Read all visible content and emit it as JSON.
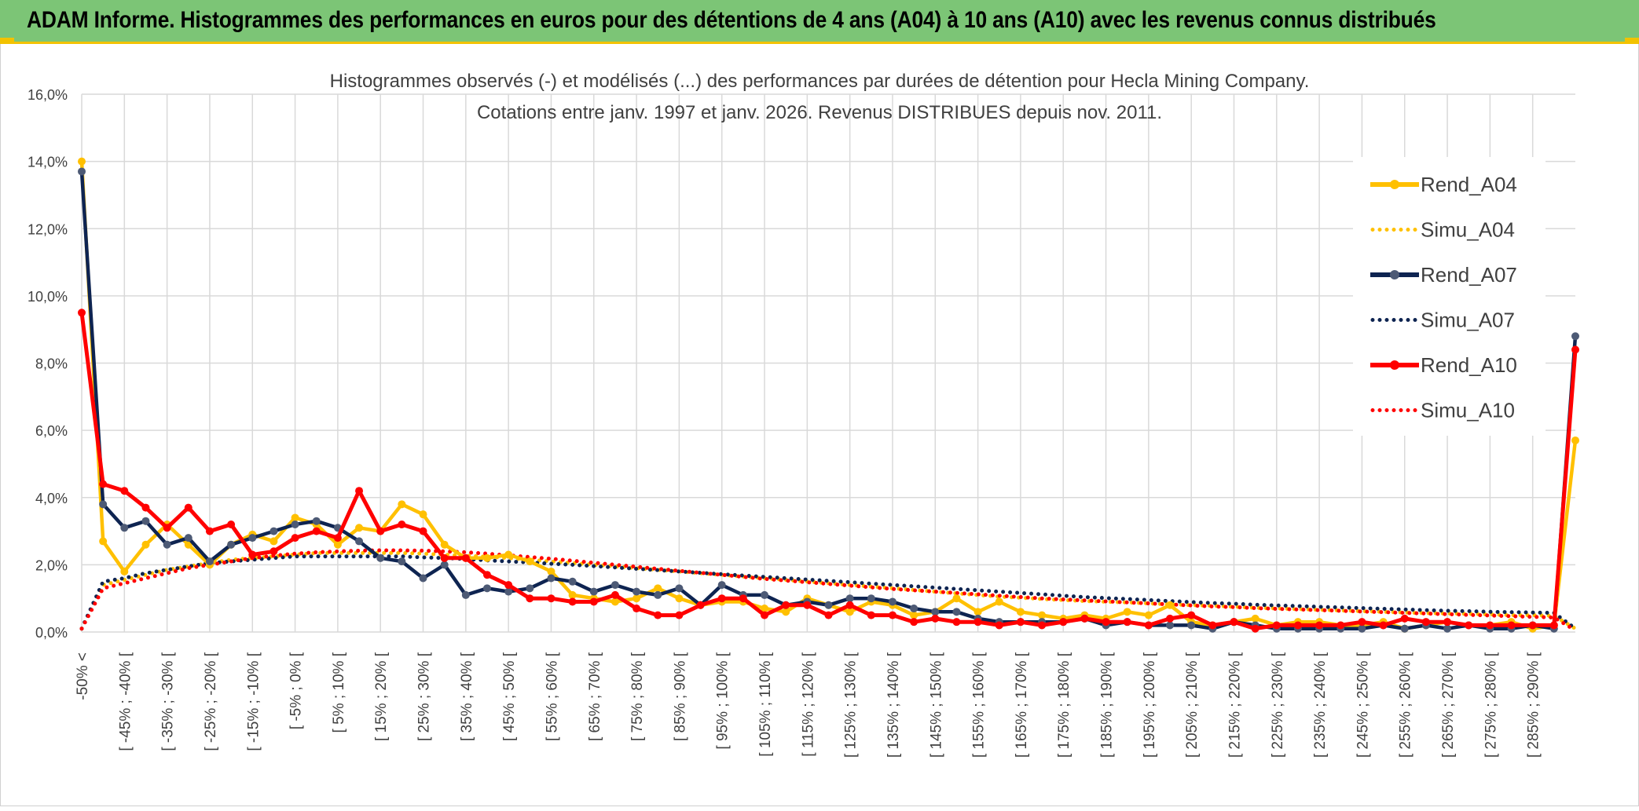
{
  "banner": {
    "title": "ADAM Informe. Histogrammes des performances en euros pour des détentions de 4 ans (A04) à 10 ans (A10) avec les revenus connus distribués"
  },
  "chart_data": {
    "type": "line",
    "title": "Histogrammes observés (-) et modélisés (...) des performances par durées de détention pour Hecla Mining Company.",
    "subtitle": "Cotations entre janv. 1997 et janv. 2026. Revenus DISTRIBUES depuis nov. 2011.",
    "xlabel": "",
    "ylabel": "",
    "ylim": [
      0,
      16
    ],
    "y_ticks": [
      "0,0%",
      "2,0%",
      "4,0%",
      "6,0%",
      "8,0%",
      "10,0%",
      "12,0%",
      "14,0%",
      "16,0%"
    ],
    "grid": true,
    "legend_position": "top-right",
    "x_labels": [
      "-50% <",
      "[ -45% ; -40% [",
      "[ -35% ; -30% [",
      "[ -25% ; -20% [",
      "[ -15% ; -10% [",
      "[ -5% ; 0% [",
      "[ 5% ; 10% [",
      "[ 15% ; 20% [",
      "[ 25% ; 30% [",
      "[ 35% ; 40% [",
      "[ 45% ; 50% [",
      "[ 55% ; 60% [",
      "[ 65% ; 70% [",
      "[ 75% ; 80% [",
      "[ 85% ; 90% [",
      "[ 95% ; 100% [",
      "[ 105% ; 110% [",
      "[ 115% ; 120% [",
      "[ 125% ; 130% [",
      "[ 135% ; 140% [",
      "[ 145% ; 150% [",
      "[ 155% ; 160% [",
      "[ 165% ; 170% [",
      "[ 175% ; 180% [",
      "[ 185% ; 190% [",
      "[ 195% ; 200% [",
      "[ 205% ; 210% [",
      "[ 215% ; 220% [",
      "[ 225% ; 230% [",
      "[ 235% ; 240% [",
      "[ 245% ; 250% [",
      "[ 255% ; 260% [",
      "[ 265% ; 270% [",
      "[ 275% ; 280% [",
      "[ 285% ; 290% ["
    ],
    "series": [
      {
        "name": "Rend_A04",
        "style": "solid",
        "color": "#ffc000",
        "values": [
          14.0,
          2.7,
          1.8,
          2.6,
          3.2,
          2.6,
          2.0,
          2.6,
          2.9,
          2.7,
          3.4,
          3.2,
          2.6,
          3.1,
          3.0,
          3.8,
          3.5,
          2.6,
          2.2,
          2.2,
          2.3,
          2.1,
          1.8,
          1.1,
          1.0,
          0.9,
          1.0,
          1.3,
          1.0,
          0.8,
          0.9,
          0.9,
          0.7,
          0.6,
          1.0,
          0.8,
          0.6,
          0.9,
          0.8,
          0.5,
          0.6,
          1.0,
          0.6,
          0.9,
          0.6,
          0.5,
          0.4,
          0.5,
          0.4,
          0.6,
          0.5,
          0.8,
          0.3,
          0.2,
          0.3,
          0.4,
          0.2,
          0.3,
          0.3,
          0.2,
          0.2,
          0.3,
          0.1,
          0.2,
          0.3,
          0.2,
          0.2,
          0.3,
          0.1,
          0.2,
          5.7
        ]
      },
      {
        "name": "Simu_A04",
        "style": "dotted",
        "color": "#ffc000",
        "values": [
          0.1,
          1.4,
          1.55,
          1.7,
          1.85,
          1.95,
          2.05,
          2.15,
          2.2,
          2.25,
          2.3,
          2.35,
          2.35,
          2.35,
          2.35,
          2.35,
          2.33,
          2.3,
          2.27,
          2.24,
          2.2,
          2.15,
          2.1,
          2.05,
          2.0,
          1.95,
          1.9,
          1.85,
          1.8,
          1.75,
          1.7,
          1.65,
          1.6,
          1.55,
          1.5,
          1.45,
          1.4,
          1.35,
          1.3,
          1.25,
          1.2,
          1.15,
          1.1,
          1.05,
          1.02,
          0.98,
          0.95,
          0.92,
          0.9,
          0.88,
          0.85,
          0.82,
          0.8,
          0.78,
          0.75,
          0.72,
          0.7,
          0.68,
          0.66,
          0.64,
          0.62,
          0.6,
          0.58,
          0.56,
          0.55,
          0.54,
          0.52,
          0.5,
          0.5,
          0.48,
          0.1
        ]
      },
      {
        "name": "Rend_A07",
        "style": "solid",
        "color": "#0e2451",
        "values": [
          13.7,
          3.8,
          3.1,
          3.3,
          2.6,
          2.8,
          2.1,
          2.6,
          2.8,
          3.0,
          3.2,
          3.3,
          3.1,
          2.7,
          2.2,
          2.1,
          1.6,
          2.0,
          1.1,
          1.3,
          1.2,
          1.3,
          1.6,
          1.5,
          1.2,
          1.4,
          1.2,
          1.1,
          1.3,
          0.8,
          1.4,
          1.1,
          1.1,
          0.8,
          0.9,
          0.8,
          1.0,
          1.0,
          0.9,
          0.7,
          0.6,
          0.6,
          0.4,
          0.3,
          0.3,
          0.3,
          0.3,
          0.4,
          0.2,
          0.3,
          0.2,
          0.2,
          0.2,
          0.1,
          0.3,
          0.2,
          0.1,
          0.1,
          0.1,
          0.1,
          0.1,
          0.2,
          0.1,
          0.2,
          0.1,
          0.2,
          0.1,
          0.1,
          0.2,
          0.1,
          8.8
        ]
      },
      {
        "name": "Simu_A07",
        "style": "dotted",
        "color": "#0e2451",
        "values": [
          0.1,
          1.5,
          1.6,
          1.75,
          1.85,
          1.95,
          2.05,
          2.1,
          2.15,
          2.2,
          2.25,
          2.25,
          2.25,
          2.25,
          2.25,
          2.25,
          2.22,
          2.2,
          2.17,
          2.13,
          2.1,
          2.07,
          2.03,
          2.0,
          1.96,
          1.92,
          1.88,
          1.84,
          1.8,
          1.76,
          1.72,
          1.68,
          1.64,
          1.6,
          1.56,
          1.52,
          1.48,
          1.44,
          1.4,
          1.36,
          1.32,
          1.28,
          1.24,
          1.2,
          1.16,
          1.12,
          1.08,
          1.04,
          1.01,
          0.98,
          0.95,
          0.92,
          0.89,
          0.86,
          0.84,
          0.81,
          0.79,
          0.77,
          0.75,
          0.73,
          0.71,
          0.69,
          0.67,
          0.65,
          0.63,
          0.62,
          0.6,
          0.59,
          0.58,
          0.57,
          0.1
        ]
      },
      {
        "name": "Rend_A10",
        "style": "solid",
        "color": "#ff0000",
        "values": [
          9.5,
          4.4,
          4.2,
          3.7,
          3.1,
          3.7,
          3.0,
          3.2,
          2.3,
          2.4,
          2.8,
          3.0,
          2.8,
          4.2,
          3.0,
          3.2,
          3.0,
          2.2,
          2.2,
          1.7,
          1.4,
          1.0,
          1.0,
          0.9,
          0.9,
          1.1,
          0.7,
          0.5,
          0.5,
          0.8,
          1.0,
          1.0,
          0.5,
          0.8,
          0.8,
          0.5,
          0.8,
          0.5,
          0.5,
          0.3,
          0.4,
          0.3,
          0.3,
          0.2,
          0.3,
          0.2,
          0.3,
          0.4,
          0.3,
          0.3,
          0.2,
          0.4,
          0.5,
          0.2,
          0.3,
          0.1,
          0.2,
          0.2,
          0.2,
          0.2,
          0.3,
          0.2,
          0.4,
          0.3,
          0.3,
          0.2,
          0.2,
          0.2,
          0.2,
          0.2,
          8.4
        ]
      },
      {
        "name": "Simu_A10",
        "style": "dotted",
        "color": "#ff0000",
        "values": [
          0.1,
          1.3,
          1.45,
          1.6,
          1.75,
          1.9,
          2.0,
          2.1,
          2.2,
          2.27,
          2.33,
          2.37,
          2.4,
          2.42,
          2.43,
          2.43,
          2.42,
          2.4,
          2.37,
          2.33,
          2.28,
          2.23,
          2.18,
          2.12,
          2.06,
          2.0,
          1.94,
          1.88,
          1.82,
          1.76,
          1.7,
          1.64,
          1.58,
          1.53,
          1.48,
          1.43,
          1.38,
          1.33,
          1.28,
          1.24,
          1.2,
          1.16,
          1.12,
          1.08,
          1.04,
          1.0,
          0.97,
          0.94,
          0.91,
          0.88,
          0.85,
          0.82,
          0.79,
          0.76,
          0.74,
          0.71,
          0.69,
          0.67,
          0.65,
          0.63,
          0.61,
          0.59,
          0.57,
          0.55,
          0.53,
          0.51,
          0.49,
          0.47,
          0.45,
          0.43,
          0.05
        ]
      }
    ]
  }
}
